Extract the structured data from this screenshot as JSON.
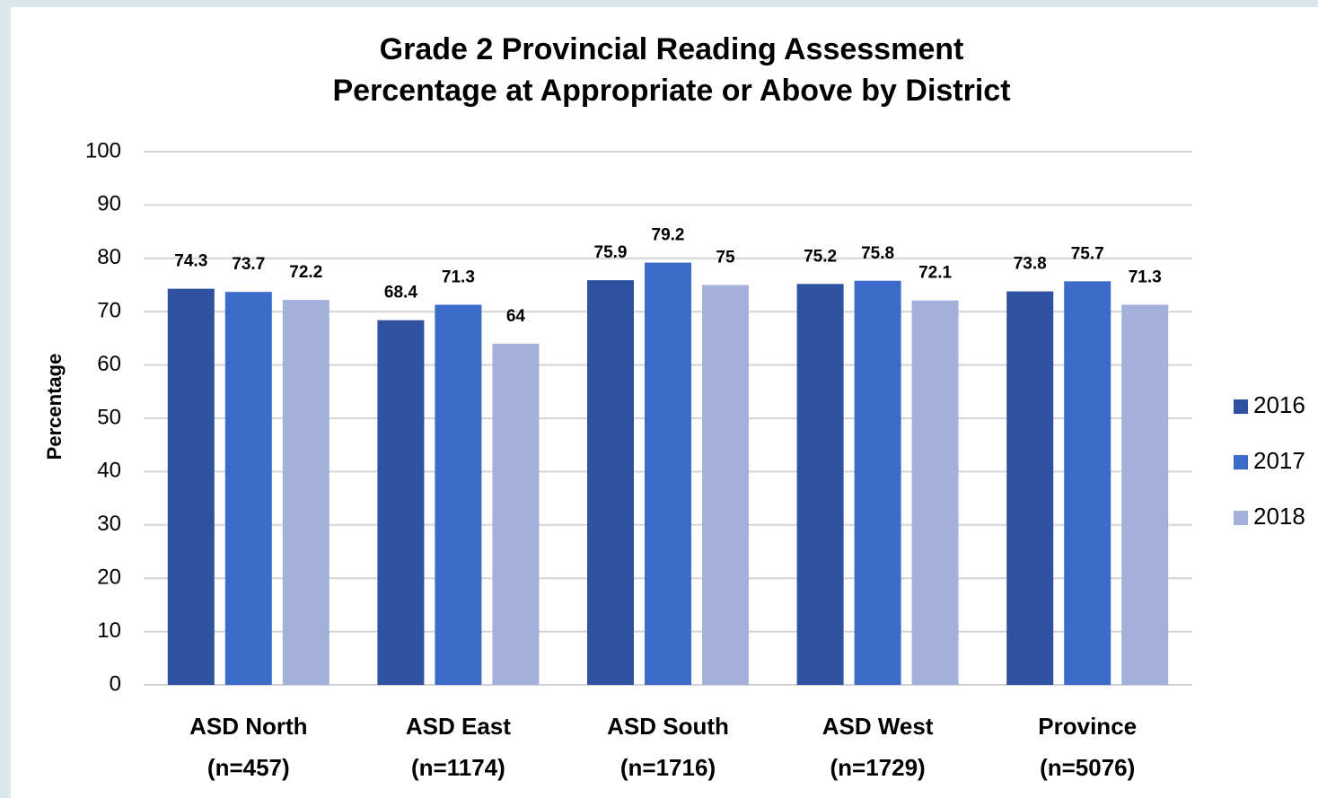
{
  "chart_data": {
    "type": "bar",
    "title": "Grade 2 Provincial Reading Assessment",
    "subtitle": "Percentage at Appropriate or Above by District",
    "y_label": "Percentage",
    "categories": [
      [
        "ASD North",
        "(n=457)"
      ],
      [
        "ASD East",
        "(n=1174)"
      ],
      [
        "ASD South",
        "(n=1716)"
      ],
      [
        "ASD West",
        "(n=1729)"
      ],
      [
        "Province",
        "(n=5076)"
      ]
    ],
    "series": [
      {
        "name": "2016",
        "color": "#2f52a0",
        "values": [
          74.3,
          68.4,
          75.9,
          75.2,
          73.8
        ]
      },
      {
        "name": "2017",
        "color": "#3b6cc9",
        "values": [
          73.7,
          71.3,
          79.2,
          75.8,
          75.7
        ]
      },
      {
        "name": "2018",
        "color": "#a3b1da",
        "values": [
          72.2,
          64,
          75,
          72.1,
          71.3
        ]
      }
    ],
    "ylim": [
      0,
      100
    ],
    "yticks": [
      0,
      10,
      20,
      30,
      40,
      50,
      60,
      70,
      80,
      90,
      100
    ],
    "grid": true,
    "legend": "right"
  }
}
